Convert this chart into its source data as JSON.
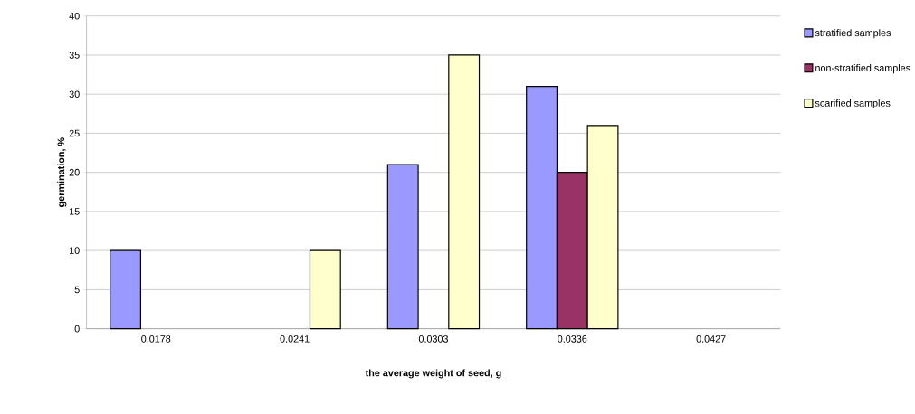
{
  "chart_data": {
    "type": "bar",
    "xlabel": "the average  weight of seed, g",
    "ylabel": "germination, %",
    "categories": [
      "0,0178",
      "0,0241",
      "0,0303",
      "0,0336",
      "0,0427"
    ],
    "series": [
      {
        "name": "stratified samples",
        "color": "#9999ff",
        "values": [
          10,
          null,
          21,
          31,
          null
        ]
      },
      {
        "name": "non-stratified samples",
        "color": "#993366",
        "values": [
          null,
          null,
          null,
          20,
          null
        ]
      },
      {
        "name": "scarified samples",
        "color": "#ffffcc",
        "values": [
          null,
          10,
          35,
          26,
          null
        ]
      }
    ],
    "ylim": [
      0,
      40
    ],
    "yticks": [
      0,
      5,
      10,
      15,
      20,
      25,
      30,
      35,
      40
    ],
    "grid": "y",
    "legend": "right"
  }
}
